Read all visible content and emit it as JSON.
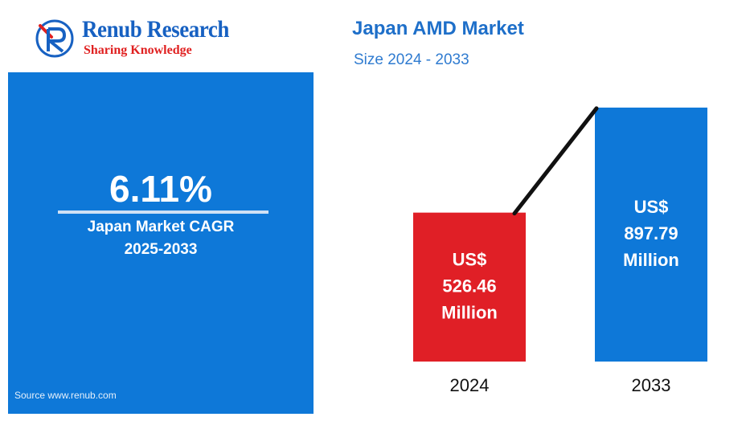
{
  "logo": {
    "title": "Renub Research",
    "tagline": "Sharing Knowledge"
  },
  "cagr_panel": {
    "value": "6.11%",
    "label": "Japan Market CAGR",
    "period": "2025-2033",
    "source": "Source  www.renub.com"
  },
  "colors": {
    "brand_blue": "#1761c2",
    "panel_blue": "#0e78d8",
    "bar_red": "#e01f26",
    "bar_blue": "#0e78d8",
    "accent_red": "#e02020"
  },
  "chart_data": {
    "type": "bar",
    "title": "Japan AMD Market",
    "subtitle": "Size 2024 - 2033",
    "categories": [
      "2024",
      "2033"
    ],
    "values": [
      526.46,
      897.79
    ],
    "value_labels": [
      [
        "US$",
        "526.46",
        "Million"
      ],
      [
        "US$",
        "897.79",
        "Million"
      ]
    ],
    "bar_colors": [
      "#e01f26",
      "#0e78d8"
    ],
    "ylim": [
      0,
      960
    ],
    "grid": false,
    "connector_line": true
  }
}
